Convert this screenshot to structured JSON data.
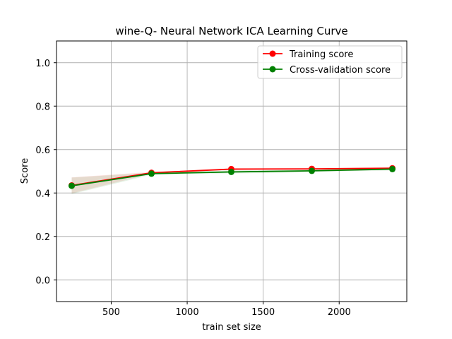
{
  "chart_data": {
    "type": "line",
    "title": "wine-Q- Neural Network ICA Learning Curve",
    "xlabel": "train set size",
    "ylabel": "Score",
    "xlim": [
      140,
      2445
    ],
    "ylim": [
      -0.1,
      1.1
    ],
    "xticks": [
      500,
      1000,
      1500,
      2000
    ],
    "yticks": [
      0.0,
      0.2,
      0.4,
      0.6,
      0.8,
      1.0
    ],
    "xtick_labels": [
      "500",
      "1000",
      "1500",
      "2000"
    ],
    "ytick_labels": [
      "0.0",
      "0.2",
      "0.4",
      "0.6",
      "0.8",
      "1.0"
    ],
    "grid": true,
    "legend_position": "top-right",
    "x": [
      240,
      765,
      1290,
      1820,
      2350
    ],
    "series": [
      {
        "name": "Training score",
        "color": "#ff0000",
        "values": [
          0.435,
          0.493,
          0.51,
          0.511,
          0.514
        ],
        "band_lower": [
          0.398,
          0.489,
          0.507,
          0.508,
          0.511
        ],
        "band_upper": [
          0.472,
          0.497,
          0.513,
          0.514,
          0.517
        ],
        "band_color": "#ff0000"
      },
      {
        "name": "Cross-validation score",
        "color": "#008000",
        "values": [
          0.433,
          0.489,
          0.497,
          0.502,
          0.51
        ],
        "band_lower": [
          0.395,
          0.484,
          0.49,
          0.496,
          0.504
        ],
        "band_upper": [
          0.471,
          0.494,
          0.504,
          0.508,
          0.516
        ],
        "band_color": "#008000"
      }
    ]
  }
}
